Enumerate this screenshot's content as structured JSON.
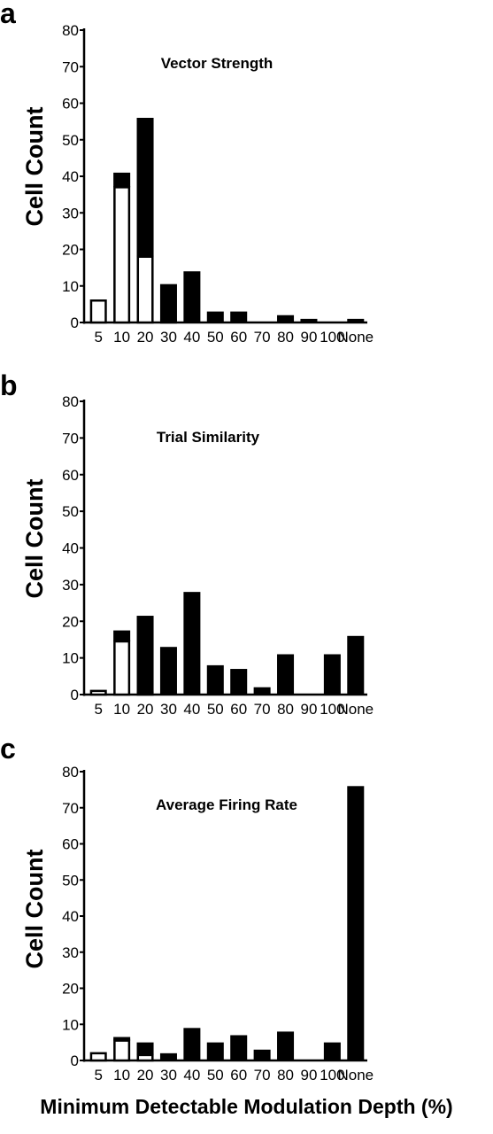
{
  "figure": {
    "shared_xlabel": "Minimum Detectable Modulation Depth (%)"
  },
  "chart_data": [
    {
      "type": "bar",
      "stacked": true,
      "panel_label": "a",
      "title": "Vector Strength",
      "ylabel": "Cell Count",
      "xlabel": "Minimum Detectable Modulation Depth (%)",
      "ylim": [
        0,
        80
      ],
      "yticks": [
        0,
        10,
        20,
        30,
        40,
        50,
        60,
        70,
        80
      ],
      "categories": [
        "5",
        "10",
        "20",
        "30",
        "40",
        "50",
        "60",
        "70",
        "80",
        "90",
        "100",
        "None"
      ],
      "series": [
        {
          "fill": "white",
          "values": [
            6,
            37,
            18,
            0.5,
            0,
            0,
            0,
            0,
            0,
            0,
            0,
            0
          ]
        },
        {
          "fill": "black",
          "values": [
            0,
            4,
            38,
            10,
            14,
            3,
            3,
            0,
            2,
            1,
            0,
            1
          ]
        }
      ],
      "grid": false
    },
    {
      "type": "bar",
      "stacked": true,
      "panel_label": "b",
      "title": "Trial Similarity",
      "ylabel": "Cell Count",
      "xlabel": "Minimum Detectable Modulation Depth (%)",
      "ylim": [
        0,
        80
      ],
      "yticks": [
        0,
        10,
        20,
        30,
        40,
        50,
        60,
        70,
        80
      ],
      "categories": [
        "5",
        "10",
        "20",
        "30",
        "40",
        "50",
        "60",
        "70",
        "80",
        "90",
        "100",
        "None"
      ],
      "series": [
        {
          "fill": "white",
          "values": [
            1,
            14.5,
            0.5,
            0,
            0,
            0,
            0,
            0,
            0,
            0,
            0,
            0
          ]
        },
        {
          "fill": "black",
          "values": [
            0,
            3,
            21,
            13,
            28,
            8,
            7,
            2,
            11,
            0,
            11,
            16
          ]
        }
      ],
      "grid": false
    },
    {
      "type": "bar",
      "stacked": true,
      "panel_label": "c",
      "title": "Average Firing Rate",
      "ylabel": "Cell Count",
      "xlabel": "Minimum Detectable Modulation Depth (%)",
      "ylim": [
        0,
        80
      ],
      "yticks": [
        0,
        10,
        20,
        30,
        40,
        50,
        60,
        70,
        80
      ],
      "categories": [
        "5",
        "10",
        "20",
        "30",
        "40",
        "50",
        "60",
        "70",
        "80",
        "90",
        "100",
        "None"
      ],
      "series": [
        {
          "fill": "white",
          "values": [
            2,
            5.5,
            1.5,
            0,
            0,
            0,
            0,
            0,
            0,
            0,
            0,
            0
          ]
        },
        {
          "fill": "black",
          "values": [
            0,
            1,
            3.5,
            2,
            9,
            5,
            7,
            3,
            8,
            0,
            5,
            76
          ]
        }
      ],
      "grid": false
    }
  ]
}
